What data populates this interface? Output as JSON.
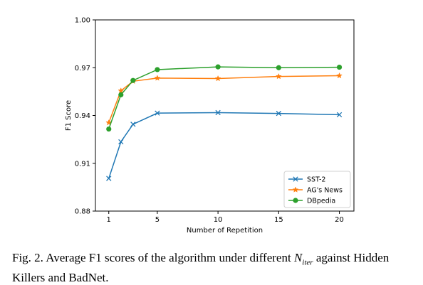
{
  "chart_data": {
    "type": "line",
    "xlabel": "Number of Repetition",
    "ylabel": "F1 Score",
    "x_tick_labels": [
      "1",
      "5",
      "10",
      "15",
      "20"
    ],
    "y_tick_labels": [
      "0.88",
      "0.91",
      "0.94",
      "0.97",
      "1.00"
    ],
    "xlim": [
      -0.1,
      21.2
    ],
    "ylim": [
      0.88,
      1.0
    ],
    "grid": false,
    "legend_position": "bottom-right",
    "x": [
      1,
      2,
      3,
      5,
      10,
      15,
      20
    ],
    "series": [
      {
        "name": "SST-2",
        "color": "#1f77b4",
        "marker": "x",
        "values": [
          0.9005,
          0.9235,
          0.9345,
          0.9415,
          0.9418,
          0.9413,
          0.9405
        ]
      },
      {
        "name": "AG's News",
        "color": "#ff7f0e",
        "marker": "star",
        "values": [
          0.9355,
          0.9555,
          0.9615,
          0.9635,
          0.9632,
          0.9645,
          0.965
        ]
      },
      {
        "name": "DBpedia",
        "color": "#2ca02c",
        "marker": "circle",
        "values": [
          0.9315,
          0.953,
          0.962,
          0.9688,
          0.9705,
          0.97,
          0.9703
        ]
      }
    ]
  },
  "caption": {
    "prefix": "Fig. 2.  Average F1 scores of the algorithm under different ",
    "niter_base": "N",
    "niter_sub": "iter",
    "suffix": " against Hidden Killers and BadNet."
  }
}
